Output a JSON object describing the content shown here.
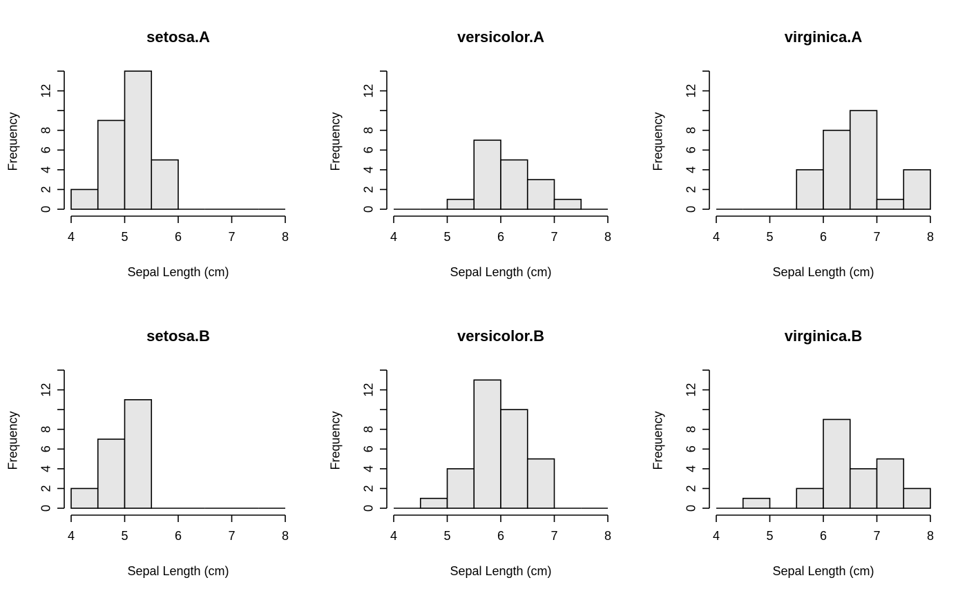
{
  "chart_data": [
    {
      "type": "bar",
      "title": "setosa.A",
      "xlabel": "Sepal Length (cm)",
      "ylabel": "Frequency",
      "xlim": [
        4,
        8
      ],
      "ylim": [
        0,
        14
      ],
      "x_ticks": [
        4,
        5,
        6,
        7,
        8
      ],
      "y_ticks": [
        0,
        2,
        4,
        6,
        8,
        12
      ],
      "bin_edges": [
        4,
        4.5,
        5,
        5.5,
        6,
        6.5,
        7,
        7.5,
        8
      ],
      "values": [
        2,
        9,
        14,
        5,
        0,
        0,
        0,
        0
      ]
    },
    {
      "type": "bar",
      "title": "versicolor.A",
      "xlabel": "Sepal Length (cm)",
      "ylabel": "Frequency",
      "xlim": [
        4,
        8
      ],
      "ylim": [
        0,
        14
      ],
      "x_ticks": [
        4,
        5,
        6,
        7,
        8
      ],
      "y_ticks": [
        0,
        2,
        4,
        6,
        8,
        12
      ],
      "bin_edges": [
        4,
        4.5,
        5,
        5.5,
        6,
        6.5,
        7,
        7.5,
        8
      ],
      "values": [
        0,
        0,
        1,
        7,
        5,
        3,
        1,
        0
      ]
    },
    {
      "type": "bar",
      "title": "virginica.A",
      "xlabel": "Sepal Length (cm)",
      "ylabel": "Frequency",
      "xlim": [
        4,
        8
      ],
      "ylim": [
        0,
        14
      ],
      "x_ticks": [
        4,
        5,
        6,
        7,
        8
      ],
      "y_ticks": [
        0,
        2,
        4,
        6,
        8,
        12
      ],
      "bin_edges": [
        4,
        4.5,
        5,
        5.5,
        6,
        6.5,
        7,
        7.5,
        8
      ],
      "values": [
        0,
        0,
        0,
        4,
        8,
        10,
        1,
        4
      ]
    },
    {
      "type": "bar",
      "title": "setosa.B",
      "xlabel": "Sepal Length (cm)",
      "ylabel": "Frequency",
      "xlim": [
        4,
        8
      ],
      "ylim": [
        0,
        14
      ],
      "x_ticks": [
        4,
        5,
        6,
        7,
        8
      ],
      "y_ticks": [
        0,
        2,
        4,
        6,
        8,
        12
      ],
      "bin_edges": [
        4,
        4.5,
        5,
        5.5,
        6,
        6.5,
        7,
        7.5,
        8
      ],
      "values": [
        2,
        7,
        11,
        0,
        0,
        0,
        0,
        0
      ]
    },
    {
      "type": "bar",
      "title": "versicolor.B",
      "xlabel": "Sepal Length (cm)",
      "ylabel": "Frequency",
      "xlim": [
        4,
        8
      ],
      "ylim": [
        0,
        14
      ],
      "x_ticks": [
        4,
        5,
        6,
        7,
        8
      ],
      "y_ticks": [
        0,
        2,
        4,
        6,
        8,
        12
      ],
      "bin_edges": [
        4,
        4.5,
        5,
        5.5,
        6,
        6.5,
        7,
        7.5,
        8
      ],
      "values": [
        0,
        1,
        4,
        13,
        10,
        5,
        0,
        0
      ]
    },
    {
      "type": "bar",
      "title": "virginica.B",
      "xlabel": "Sepal Length (cm)",
      "ylabel": "Frequency",
      "xlim": [
        4,
        8
      ],
      "ylim": [
        0,
        14
      ],
      "x_ticks": [
        4,
        5,
        6,
        7,
        8
      ],
      "y_ticks": [
        0,
        2,
        4,
        6,
        8,
        12
      ],
      "bin_edges": [
        4,
        4.5,
        5,
        5.5,
        6,
        6.5,
        7,
        7.5,
        8
      ],
      "values": [
        0,
        1,
        0,
        2,
        9,
        4,
        5,
        2
      ]
    }
  ],
  "colors": {
    "bar_fill": "#e6e6e6",
    "bar_stroke": "#000000"
  }
}
